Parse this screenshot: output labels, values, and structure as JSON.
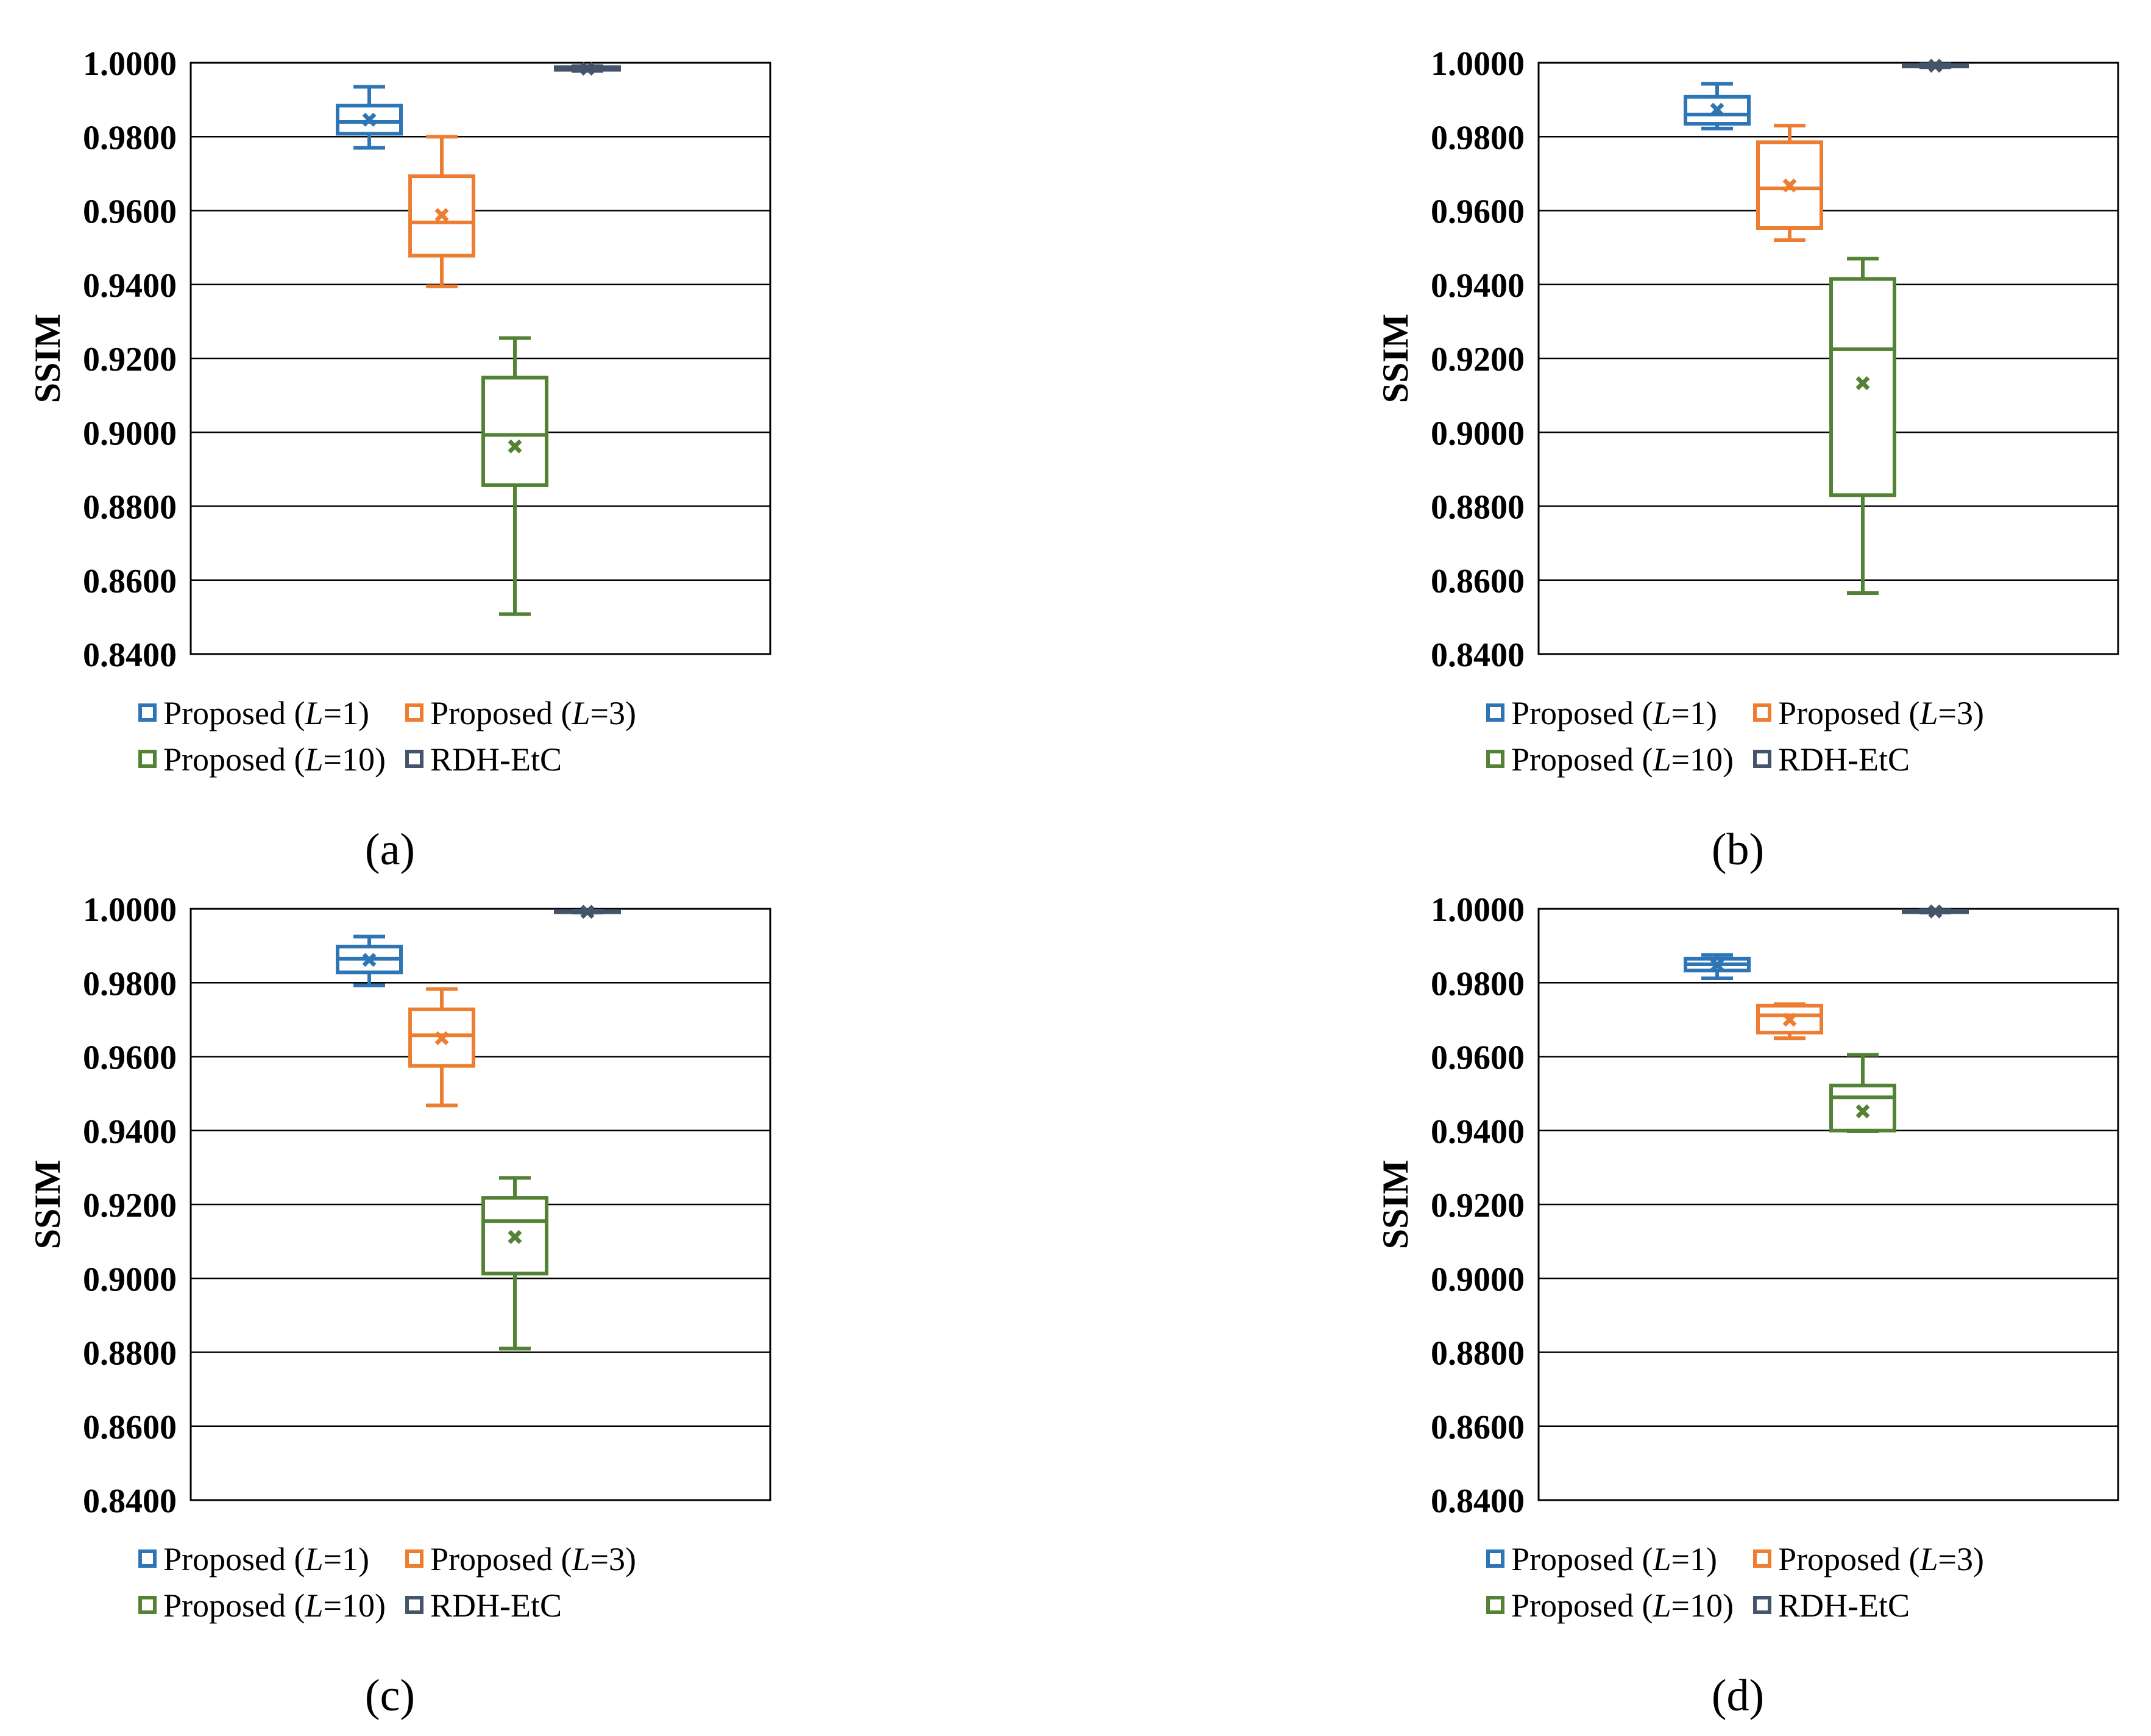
{
  "chart_data": [
    {
      "type": "box",
      "subfigure_label": "(a)",
      "ylabel": "SSIM",
      "ylim": [
        0.84,
        1.0
      ],
      "yticks": [
        "0.8400",
        "0.8600",
        "0.8800",
        "0.9000",
        "0.9200",
        "0.9400",
        "0.9600",
        "0.9800",
        "1.0000"
      ],
      "grid": true,
      "legend_position": "bottom",
      "series": [
        {
          "name": "Proposed (L=1)",
          "prefix": "Proposed (",
          "var": "L",
          "suffix": "=1)",
          "color": "#2E75B6",
          "whisker_low": 0.977,
          "q1": 0.9808,
          "median": 0.984,
          "q3": 0.9884,
          "whisker_high": 0.9935,
          "mean": 0.9846
        },
        {
          "name": "Proposed (L=3)",
          "prefix": "Proposed (",
          "var": "L",
          "suffix": "=3)",
          "color": "#ED7D31",
          "whisker_low": 0.9395,
          "q1": 0.9478,
          "median": 0.9568,
          "q3": 0.9693,
          "whisker_high": 0.98,
          "mean": 0.9588
        },
        {
          "name": "Proposed (L=10)",
          "prefix": "Proposed (",
          "var": "L",
          "suffix": "=10)",
          "color": "#548235",
          "whisker_low": 0.8508,
          "q1": 0.8857,
          "median": 0.8993,
          "q3": 0.9148,
          "whisker_high": 0.9255,
          "mean": 0.8962
        },
        {
          "name": "RDH-EtC",
          "prefix": "RDH-EtC",
          "var": "",
          "suffix": "",
          "color": "#44546A",
          "whisker_low": 0.9978,
          "q1": 0.9981,
          "median": 0.9985,
          "q3": 0.9988,
          "whisker_high": 0.9991,
          "mean": 0.9984
        }
      ]
    },
    {
      "type": "box",
      "subfigure_label": "(b)",
      "ylabel": "SSIM",
      "ylim": [
        0.84,
        1.0
      ],
      "yticks": [
        "0.8400",
        "0.8600",
        "0.8800",
        "0.9000",
        "0.9200",
        "0.9400",
        "0.9600",
        "0.9800",
        "1.0000"
      ],
      "grid": true,
      "legend_position": "bottom",
      "series": [
        {
          "name": "Proposed (L=1)",
          "prefix": "Proposed (",
          "var": "L",
          "suffix": "=1)",
          "color": "#2E75B6",
          "whisker_low": 0.9822,
          "q1": 0.9835,
          "median": 0.986,
          "q3": 0.9908,
          "whisker_high": 0.9943,
          "mean": 0.9873
        },
        {
          "name": "Proposed (L=3)",
          "prefix": "Proposed (",
          "var": "L",
          "suffix": "=3)",
          "color": "#ED7D31",
          "whisker_low": 0.952,
          "q1": 0.9553,
          "median": 0.966,
          "q3": 0.9785,
          "whisker_high": 0.983,
          "mean": 0.9668
        },
        {
          "name": "Proposed (L=10)",
          "prefix": "Proposed (",
          "var": "L",
          "suffix": "=10)",
          "color": "#548235",
          "whisker_low": 0.8565,
          "q1": 0.883,
          "median": 0.9225,
          "q3": 0.9415,
          "whisker_high": 0.947,
          "mean": 0.9133
        },
        {
          "name": "RDH-EtC",
          "prefix": "RDH-EtC",
          "var": "",
          "suffix": "",
          "color": "#44546A",
          "whisker_low": 0.9988,
          "q1": 0.999,
          "median": 0.9992,
          "q3": 0.9994,
          "whisker_high": 0.9996,
          "mean": 0.9992
        }
      ]
    },
    {
      "type": "box",
      "subfigure_label": "(c)",
      "ylabel": "SSIM",
      "ylim": [
        0.84,
        1.0
      ],
      "yticks": [
        "0.8400",
        "0.8600",
        "0.8800",
        "0.9000",
        "0.9200",
        "0.9400",
        "0.9600",
        "0.9800",
        "1.0000"
      ],
      "grid": true,
      "legend_position": "bottom",
      "series": [
        {
          "name": "Proposed (L=1)",
          "prefix": "Proposed (",
          "var": "L",
          "suffix": "=1)",
          "color": "#2E75B6",
          "whisker_low": 0.9793,
          "q1": 0.9828,
          "median": 0.9865,
          "q3": 0.9898,
          "whisker_high": 0.9925,
          "mean": 0.9862
        },
        {
          "name": "Proposed (L=3)",
          "prefix": "Proposed (",
          "var": "L",
          "suffix": "=3)",
          "color": "#ED7D31",
          "whisker_low": 0.9468,
          "q1": 0.9575,
          "median": 0.9658,
          "q3": 0.9728,
          "whisker_high": 0.9783,
          "mean": 0.965
        },
        {
          "name": "Proposed (L=10)",
          "prefix": "Proposed (",
          "var": "L",
          "suffix": "=10)",
          "color": "#548235",
          "whisker_low": 0.881,
          "q1": 0.9013,
          "median": 0.9155,
          "q3": 0.9218,
          "whisker_high": 0.9272,
          "mean": 0.9112
        },
        {
          "name": "RDH-EtC",
          "prefix": "RDH-EtC",
          "var": "",
          "suffix": "",
          "color": "#44546A",
          "whisker_low": 0.999,
          "q1": 0.9991,
          "median": 0.9992,
          "q3": 0.9994,
          "whisker_high": 0.9995,
          "mean": 0.9992
        }
      ]
    },
    {
      "type": "box",
      "subfigure_label": "(d)",
      "ylabel": "SSIM",
      "ylim": [
        0.84,
        1.0
      ],
      "yticks": [
        "0.8400",
        "0.8600",
        "0.8800",
        "0.9000",
        "0.9200",
        "0.9400",
        "0.9600",
        "0.9800",
        "1.0000"
      ],
      "grid": true,
      "legend_position": "bottom",
      "series": [
        {
          "name": "Proposed (L=1)",
          "prefix": "Proposed (",
          "var": "L",
          "suffix": "=1)",
          "color": "#2E75B6",
          "whisker_low": 0.9812,
          "q1": 0.9833,
          "median": 0.985,
          "q3": 0.9865,
          "whisker_high": 0.9875,
          "mean": 0.9848
        },
        {
          "name": "Proposed (L=3)",
          "prefix": "Proposed (",
          "var": "L",
          "suffix": "=3)",
          "color": "#ED7D31",
          "whisker_low": 0.965,
          "q1": 0.9665,
          "median": 0.9712,
          "q3": 0.9738,
          "whisker_high": 0.9742,
          "mean": 0.97
        },
        {
          "name": "Proposed (L=10)",
          "prefix": "Proposed (",
          "var": "L",
          "suffix": "=10)",
          "color": "#548235",
          "whisker_low": 0.9398,
          "q1": 0.94,
          "median": 0.949,
          "q3": 0.9522,
          "whisker_high": 0.9605,
          "mean": 0.9452
        },
        {
          "name": "RDH-EtC",
          "prefix": "RDH-EtC",
          "var": "",
          "suffix": "",
          "color": "#44546A",
          "whisker_low": 0.999,
          "q1": 0.9991,
          "median": 0.9993,
          "q3": 0.9995,
          "whisker_high": 0.9996,
          "mean": 0.9993
        }
      ]
    }
  ]
}
